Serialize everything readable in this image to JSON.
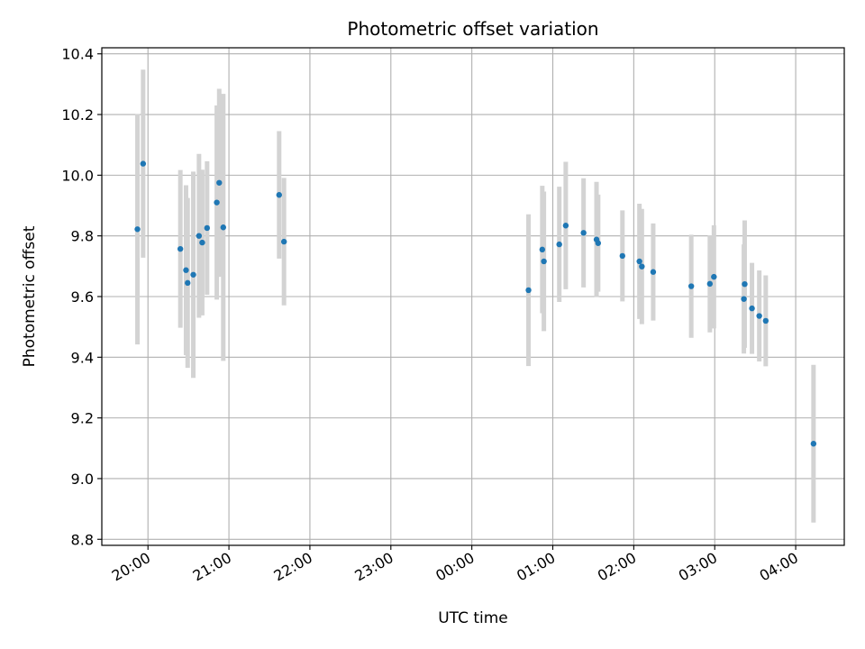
{
  "chart_data": {
    "type": "scatter",
    "title": "Photometric offset variation",
    "xlabel": "UTC time",
    "ylabel": "Photometric offset",
    "x_unit": "UTC hours, continuing past midnight (24.0 = 00:00 next day)",
    "xlim": [
      19.43,
      28.6
    ],
    "ylim": [
      8.78,
      10.42
    ],
    "x_ticks": [
      {
        "value": 20,
        "label": "20:00"
      },
      {
        "value": 21,
        "label": "21:00"
      },
      {
        "value": 22,
        "label": "22:00"
      },
      {
        "value": 23,
        "label": "23:00"
      },
      {
        "value": 24,
        "label": "00:00"
      },
      {
        "value": 25,
        "label": "01:00"
      },
      {
        "value": 26,
        "label": "02:00"
      },
      {
        "value": 27,
        "label": "03:00"
      },
      {
        "value": 28,
        "label": "04:00"
      }
    ],
    "y_ticks": [
      {
        "value": 8.8,
        "label": "8.8"
      },
      {
        "value": 9.0,
        "label": "9.0"
      },
      {
        "value": 9.2,
        "label": "9.2"
      },
      {
        "value": 9.4,
        "label": "9.4"
      },
      {
        "value": 9.6,
        "label": "9.6"
      },
      {
        "value": 9.8,
        "label": "9.8"
      },
      {
        "value": 10.0,
        "label": "10.0"
      },
      {
        "value": 10.2,
        "label": "10.2"
      },
      {
        "value": 10.4,
        "label": "10.4"
      }
    ],
    "grid": true,
    "point_color": "#1f77b4",
    "errorbar_color": "#d3d3d3",
    "points": [
      {
        "x": 19.87,
        "y": 9.822,
        "err": 0.38
      },
      {
        "x": 19.94,
        "y": 10.038,
        "err": 0.31
      },
      {
        "x": 20.4,
        "y": 9.757,
        "err": 0.26
      },
      {
        "x": 20.47,
        "y": 9.687,
        "err": 0.28
      },
      {
        "x": 20.49,
        "y": 9.645,
        "err": 0.28
      },
      {
        "x": 20.56,
        "y": 9.672,
        "err": 0.34
      },
      {
        "x": 20.63,
        "y": 9.8,
        "err": 0.27
      },
      {
        "x": 20.67,
        "y": 9.778,
        "err": 0.24
      },
      {
        "x": 20.73,
        "y": 9.826,
        "err": 0.22
      },
      {
        "x": 20.85,
        "y": 9.91,
        "err": 0.32
      },
      {
        "x": 20.88,
        "y": 9.975,
        "err": 0.31
      },
      {
        "x": 20.93,
        "y": 9.828,
        "err": 0.44
      },
      {
        "x": 21.62,
        "y": 9.935,
        "err": 0.21
      },
      {
        "x": 21.68,
        "y": 9.781,
        "err": 0.21
      },
      {
        "x": 24.7,
        "y": 9.621,
        "err": 0.25
      },
      {
        "x": 24.87,
        "y": 9.755,
        "err": 0.21
      },
      {
        "x": 24.89,
        "y": 9.716,
        "err": 0.23
      },
      {
        "x": 25.08,
        "y": 9.772,
        "err": 0.19
      },
      {
        "x": 25.16,
        "y": 9.834,
        "err": 0.21
      },
      {
        "x": 25.38,
        "y": 9.81,
        "err": 0.18
      },
      {
        "x": 25.54,
        "y": 9.788,
        "err": 0.19
      },
      {
        "x": 25.56,
        "y": 9.776,
        "err": 0.16
      },
      {
        "x": 25.86,
        "y": 9.734,
        "err": 0.15
      },
      {
        "x": 26.07,
        "y": 9.716,
        "err": 0.19
      },
      {
        "x": 26.1,
        "y": 9.699,
        "err": 0.19
      },
      {
        "x": 26.24,
        "y": 9.681,
        "err": 0.16
      },
      {
        "x": 26.71,
        "y": 9.634,
        "err": 0.17
      },
      {
        "x": 26.94,
        "y": 9.642,
        "err": 0.16
      },
      {
        "x": 26.99,
        "y": 9.665,
        "err": 0.17
      },
      {
        "x": 27.36,
        "y": 9.592,
        "err": 0.18
      },
      {
        "x": 27.37,
        "y": 9.641,
        "err": 0.21
      },
      {
        "x": 27.46,
        "y": 9.561,
        "err": 0.15
      },
      {
        "x": 27.55,
        "y": 9.536,
        "err": 0.15
      },
      {
        "x": 27.63,
        "y": 9.52,
        "err": 0.15
      },
      {
        "x": 28.22,
        "y": 9.115,
        "err": 0.26
      }
    ]
  }
}
